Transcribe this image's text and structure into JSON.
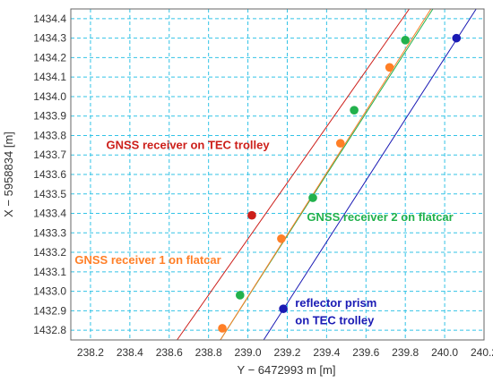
{
  "chart_data": {
    "type": "scatter",
    "xlabel": "Y − 6472993 m [m]",
    "ylabel": "X − 5958834 [m]",
    "xlim": [
      238.1,
      240.2
    ],
    "ylim": [
      1432.75,
      1434.45
    ],
    "x_ticks": [
      "238.2",
      "238.4",
      "238.6",
      "238.8",
      "239.0",
      "239.2",
      "239.4",
      "239.6",
      "239.8",
      "240.0",
      "240.2"
    ],
    "y_ticks": [
      "1432.8",
      "1432.9",
      "1433.0",
      "1433.1",
      "1433.2",
      "1433.3",
      "1433.4",
      "1433.5",
      "1433.6",
      "1433.7",
      "1433.8",
      "1433.9",
      "1434.0",
      "1434.1",
      "1434.2",
      "1434.3",
      "1434.4"
    ],
    "grid": true,
    "grid_style": "dashed",
    "series": [
      {
        "name": "GNSS receiver on TEC trolley",
        "color": "#cc1f1a",
        "line": [
          [
            238.64,
            1432.75
          ],
          [
            239.82,
            1434.45
          ]
        ],
        "points": [
          [
            239.02,
            1433.39
          ]
        ]
      },
      {
        "name": "GNSS receiver 2 on flatcar",
        "color": "#22b14c",
        "line": [
          [
            238.86,
            1432.75
          ],
          [
            239.94,
            1434.45
          ]
        ],
        "points": [
          [
            238.96,
            1432.98
          ],
          [
            239.33,
            1433.48
          ],
          [
            239.54,
            1433.93
          ],
          [
            239.8,
            1434.29
          ]
        ]
      },
      {
        "name": "GNSS receiver 1 on flatcar",
        "color": "#ff7f27",
        "line": [
          [
            238.86,
            1432.75
          ],
          [
            239.93,
            1434.45
          ]
        ],
        "points": [
          [
            238.87,
            1432.81
          ],
          [
            239.17,
            1433.27
          ],
          [
            239.47,
            1433.76
          ],
          [
            239.72,
            1434.15
          ]
        ]
      },
      {
        "name": "reflector prism on TEC trolley",
        "color": "#1a1ab4",
        "line": [
          [
            239.08,
            1432.75
          ],
          [
            240.16,
            1434.45
          ]
        ],
        "points": [
          [
            239.18,
            1432.91
          ],
          [
            240.06,
            1434.3
          ]
        ]
      }
    ],
    "annotations": [
      {
        "text": "GNSS receiver on TEC trolley",
        "x": 238.28,
        "y": 1433.73,
        "color": "#cc1f1a"
      },
      {
        "text": "GNSS receiver 2 on flatcar",
        "x": 239.3,
        "y": 1433.36,
        "color": "#22b14c"
      },
      {
        "text": "GNSS receiver 1 on flatcar",
        "x": 238.12,
        "y": 1433.14,
        "color": "#ff7f27"
      },
      {
        "text": "reflector prism",
        "x": 239.24,
        "y": 1432.92,
        "color": "#1a1ab4"
      },
      {
        "text": "on TEC trolley",
        "x": 239.24,
        "y": 1432.83,
        "color": "#1a1ab4"
      }
    ]
  }
}
